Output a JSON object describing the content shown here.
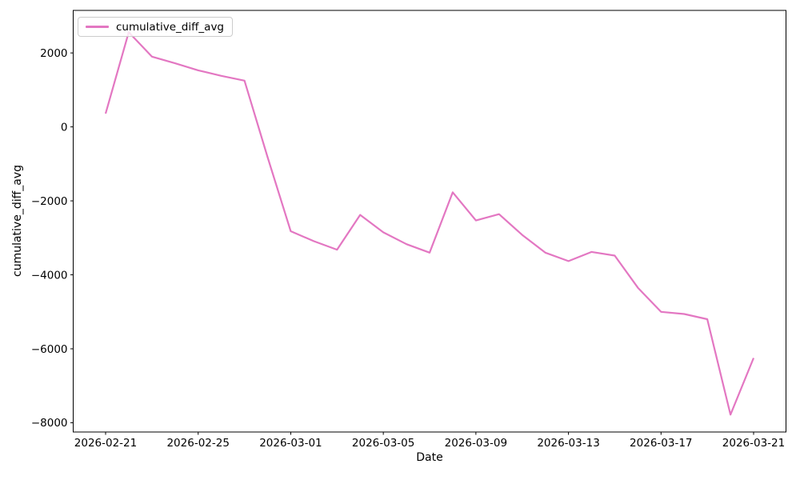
{
  "chart_data": {
    "type": "line",
    "title": "",
    "xlabel": "Date",
    "ylabel": "cumulative_diff_avg",
    "legend": {
      "position": "upper left",
      "entries": [
        "cumulative_diff_avg"
      ]
    },
    "line_color": "#e377c2",
    "background_color": "#ffffff",
    "grid": false,
    "x": [
      "2026-02-21",
      "2026-02-22",
      "2026-02-23",
      "2026-02-24",
      "2026-02-25",
      "2026-02-26",
      "2026-02-27",
      "2026-02-28",
      "2026-03-01",
      "2026-03-02",
      "2026-03-03",
      "2026-03-04",
      "2026-03-05",
      "2026-03-06",
      "2026-03-07",
      "2026-03-08",
      "2026-03-09",
      "2026-03-10",
      "2026-03-11",
      "2026-03-12",
      "2026-03-13",
      "2026-03-14",
      "2026-03-15",
      "2026-03-16",
      "2026-03-17",
      "2026-03-18",
      "2026-03-19",
      "2026-03-20",
      "2026-03-21"
    ],
    "series": [
      {
        "name": "cumulative_diff_avg",
        "values": [
          360,
          2560,
          1900,
          1720,
          1530,
          1380,
          1250,
          -820,
          -2820,
          -3090,
          -3320,
          -2380,
          -2850,
          -3170,
          -3400,
          -1770,
          -2530,
          -2360,
          -2920,
          -3400,
          -3630,
          -3380,
          -3480,
          -4350,
          -5000,
          -5060,
          -5200,
          -7780,
          -6250
        ]
      }
    ],
    "x_tick_labels": [
      "2026-02-21",
      "2026-02-25",
      "2026-03-01",
      "2026-03-05",
      "2026-03-09",
      "2026-03-13",
      "2026-03-17",
      "2026-03-21"
    ],
    "y_ticks": [
      2000,
      0,
      -2000,
      -4000,
      -6000,
      -8000
    ],
    "y_tick_labels": [
      "2000",
      "0",
      "−2000",
      "−4000",
      "−6000",
      "−8000"
    ],
    "ylim": [
      -8250,
      3150
    ],
    "x_margin_days": 1.4
  }
}
